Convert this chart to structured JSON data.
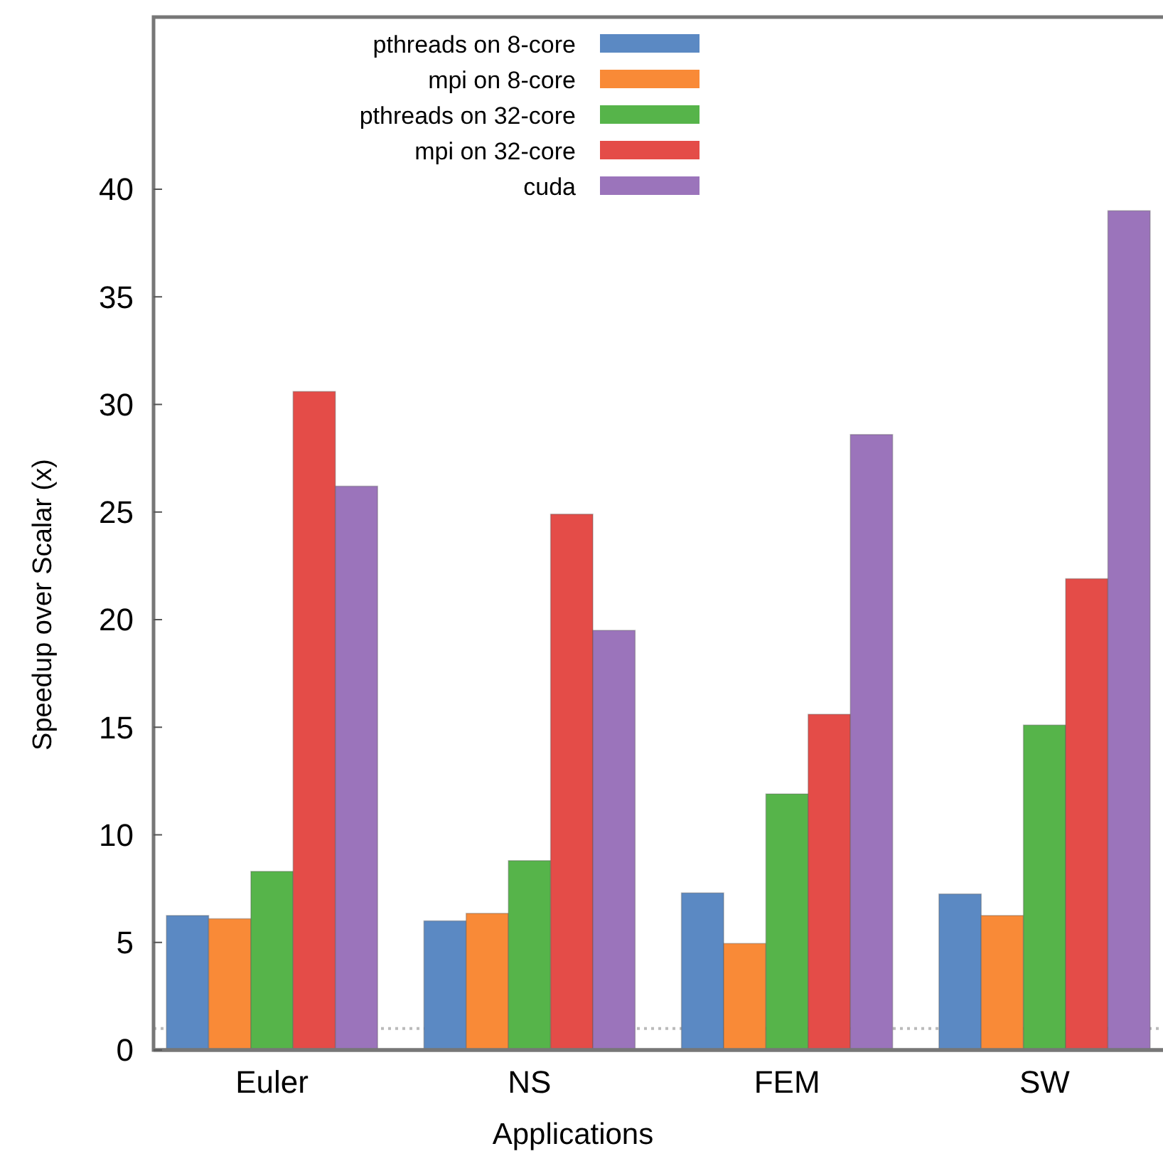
{
  "chart_data": {
    "type": "bar",
    "xlabel": "Applications",
    "ylabel": "Speedup over Scalar (x)",
    "categories": [
      "Euler",
      "NS",
      "FEM",
      "SW"
    ],
    "series": [
      {
        "name": "pthreads on 8-core",
        "color": "#5b89c3",
        "values": [
          6.25,
          6.0,
          7.3,
          7.25
        ]
      },
      {
        "name": "mpi on 8-core",
        "color": "#f98a37",
        "values": [
          6.1,
          6.35,
          4.95,
          6.25
        ]
      },
      {
        "name": "pthreads on 32-core",
        "color": "#56b44a",
        "values": [
          8.3,
          8.8,
          11.9,
          15.1
        ]
      },
      {
        "name": "mpi on 32-core",
        "color": "#e44c48",
        "values": [
          30.6,
          24.9,
          15.6,
          21.9
        ]
      },
      {
        "name": "cuda",
        "color": "#9b74bb",
        "values": [
          26.2,
          19.5,
          28.6,
          39.0
        ]
      }
    ],
    "ylim": [
      0,
      48
    ],
    "yticks": [
      0,
      5,
      10,
      15,
      20,
      25,
      30,
      35,
      40
    ],
    "ref_lines": [
      {
        "axis": "y",
        "value": 1,
        "color": "#bbbbbb",
        "line_style": "dotted"
      }
    ],
    "grid": false,
    "legend": "top left"
  }
}
